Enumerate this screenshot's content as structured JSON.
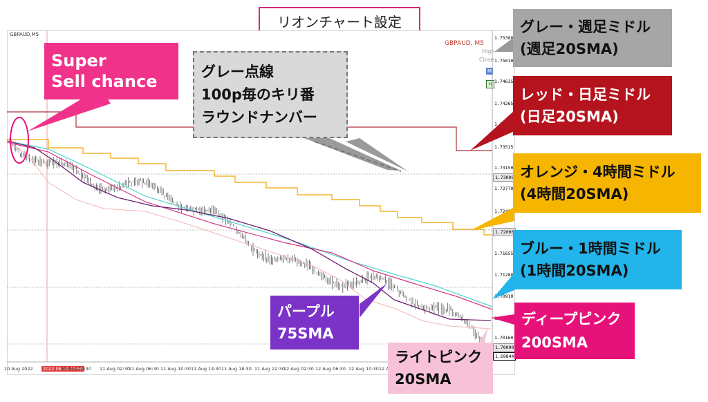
{
  "title": "リオンチャート設定",
  "chart": {
    "symbol": "GBPAUD,M5",
    "overlay_text": "GBPAUD, M5",
    "overlay_sub1": "High",
    "overlay_sub2": "Close",
    "prices": [
      "1.75380",
      "1.75010",
      "1.74635",
      "1.74265",
      "1.73890",
      "1.73515",
      "1.73150",
      "1.73000",
      "1.72770",
      "1.72400",
      "1.72000",
      "1.71655",
      "1.71280",
      "1.70910",
      "1.70535",
      "1.70160",
      "1.70000",
      "1.69844"
    ],
    "times": [
      "10 Aug 2022",
      "2022.08.10 19:50",
      "10 Aug 22:30",
      "11 Aug 02:30",
      "11 Aug 06:30",
      "11 Aug 10:30",
      "11 Aug 14:30",
      "11 Aug 18:30",
      "11 Aug 22:30",
      "12 Aug 02:30",
      "12 Aug 06:30",
      "12 Aug 10:30",
      "12 A"
    ],
    "time_highlight": "2022.08.10 19:50"
  },
  "callouts": {
    "super_sell": [
      "Super",
      "Sell chance"
    ],
    "gray_dotted": [
      "グレー点線",
      "100p毎のキリ番",
      "ラウンドナンバー"
    ],
    "gray_week": [
      "グレー・週足ミドル",
      "(週足20SMA)"
    ],
    "red_day": [
      "レッド・日足ミドル",
      "(日足20SMA)"
    ],
    "orange_4h": [
      "オレンジ・4時間ミドル",
      "(4時間20SMA)"
    ],
    "blue_1h": [
      "ブルー・1時間ミドル",
      "(1時間20SMA)"
    ],
    "purple": [
      "パープル",
      "75SMA"
    ],
    "deep_pink": [
      "ディープピンク",
      "200SMA"
    ],
    "light_pink": [
      "ライトピンク",
      "20SMA"
    ]
  },
  "colors": {
    "red_line": "#a8323c",
    "orange_line": "#f0a500",
    "teal_line": "#4fd5cf",
    "purple_line": "#6b1f6b",
    "deep_pink_line": "#d23a86",
    "light_pink_line": "#f2b5b5",
    "candle": "#555555"
  }
}
